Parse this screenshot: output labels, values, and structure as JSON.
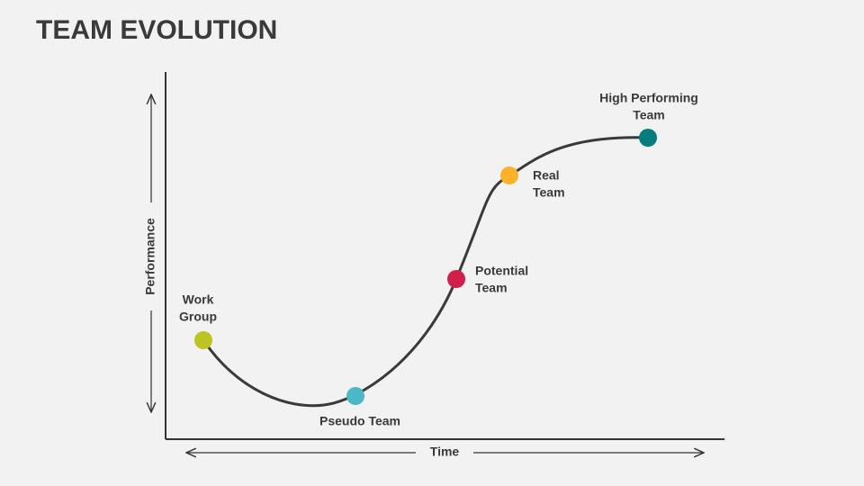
{
  "header": {
    "title": "TEAM EVOLUTION"
  },
  "axes": {
    "y_label": "Performance",
    "x_label": "Time"
  },
  "nodes": [
    {
      "label": [
        "Work",
        "Group"
      ]
    },
    {
      "label": [
        "Pseudo Team"
      ]
    },
    {
      "label": [
        "Potential",
        "Team"
      ]
    },
    {
      "label": [
        "Real",
        "Team"
      ]
    },
    {
      "label": [
        "High Performing",
        "Team"
      ]
    }
  ]
}
